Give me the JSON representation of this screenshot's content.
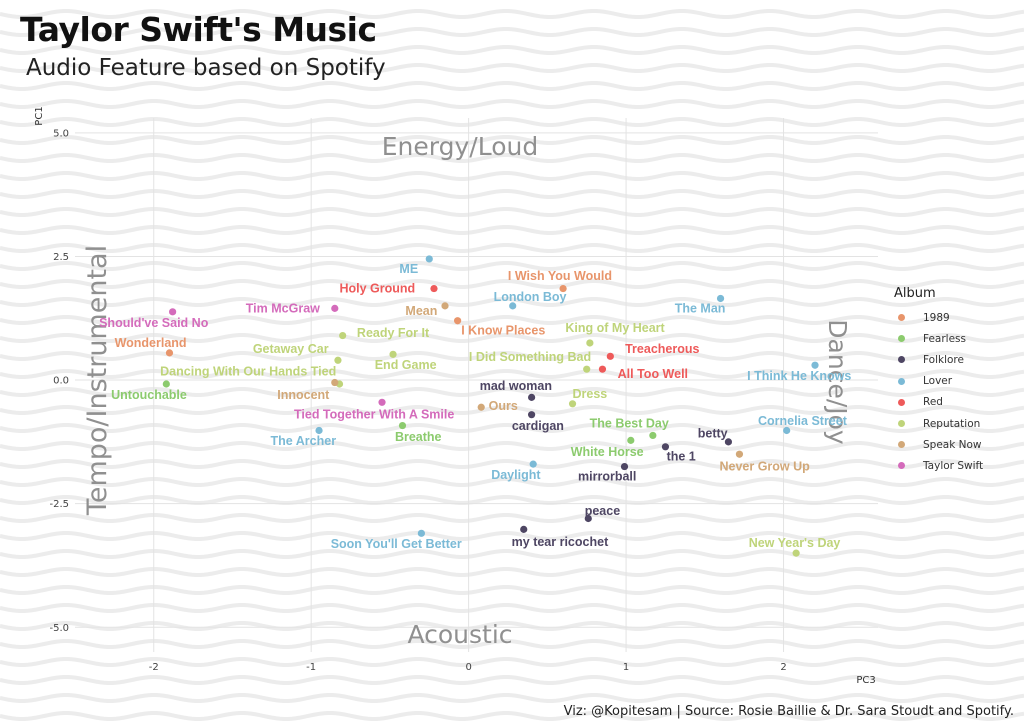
{
  "title": "Taylor Swift's Music",
  "subtitle": "Audio Feature based on Spotify",
  "caption": "Viz: @Kopitesam | Source: Rosie Baillie & Dr. Sara Stoudt and Spotify.",
  "chart_data": {
    "type": "scatter",
    "xlabel": "PC3",
    "ylabel": "PC1",
    "xlim": [
      -2.5,
      2.6
    ],
    "ylim": [
      -5.5,
      5.3
    ],
    "x_ticks": [
      -2,
      -1,
      0,
      1,
      2
    ],
    "y_ticks": [
      5.0,
      2.5,
      0.0,
      -2.5,
      -5.0
    ],
    "x_tick_labels": [
      "-2",
      "-1",
      "0",
      "1",
      "2"
    ],
    "y_tick_labels": [
      "5.0",
      "2.5",
      "0.0",
      "-2.5",
      "-5.0"
    ],
    "grid": true,
    "legend_position": "right",
    "legend_title": "Album",
    "quadrant_labels": {
      "top": "Energy/Loud",
      "bottom": "Acoustic",
      "left": "Tempo/Instrumental",
      "right": "Dance/Joy"
    },
    "albums": [
      {
        "name": "1989",
        "color": "#E8956B"
      },
      {
        "name": "Fearless",
        "color": "#8CCB6E"
      },
      {
        "name": "Folklore",
        "color": "#4E4663"
      },
      {
        "name": "Lover",
        "color": "#7BBAD6"
      },
      {
        "name": "Red",
        "color": "#EE5A5A"
      },
      {
        "name": "Reputation",
        "color": "#BFD47A"
      },
      {
        "name": "Speak Now",
        "color": "#D2A878"
      },
      {
        "name": "Taylor Swift",
        "color": "#D46BBB"
      }
    ],
    "points": [
      {
        "song": "ME",
        "album": "Lover",
        "x": -0.25,
        "y": 2.45,
        "lx": -0.38,
        "ly": 2.25
      },
      {
        "song": "Holy Ground",
        "album": "Red",
        "x": -0.22,
        "y": 1.85,
        "lx": -0.58,
        "ly": 1.85
      },
      {
        "song": "I Wish You Would",
        "album": "1989",
        "x": 0.6,
        "y": 1.85,
        "lx": 0.58,
        "ly": 2.1
      },
      {
        "song": "London Boy",
        "album": "Lover",
        "x": 0.28,
        "y": 1.5,
        "lx": 0.39,
        "ly": 1.68
      },
      {
        "song": "The Man",
        "album": "Lover",
        "x": 1.6,
        "y": 1.65,
        "lx": 1.47,
        "ly": 1.45
      },
      {
        "song": "Tim McGraw",
        "album": "Taylor Swift",
        "x": -0.85,
        "y": 1.45,
        "lx": -1.18,
        "ly": 1.45
      },
      {
        "song": "Mean",
        "album": "Speak Now",
        "x": -0.15,
        "y": 1.5,
        "lx": -0.3,
        "ly": 1.4
      },
      {
        "song": "Should've Said No",
        "album": "Taylor Swift",
        "x": -1.88,
        "y": 1.38,
        "lx": -2.0,
        "ly": 1.15
      },
      {
        "song": "Ready For It",
        "album": "Reputation",
        "x": -0.8,
        "y": 0.9,
        "lx": -0.48,
        "ly": 0.95
      },
      {
        "song": "I Know Places",
        "album": "1989",
        "x": -0.07,
        "y": 1.2,
        "lx": 0.22,
        "ly": 1.0
      },
      {
        "song": "King of My Heart",
        "album": "Reputation",
        "x": 0.77,
        "y": 0.75,
        "lx": 0.93,
        "ly": 1.05
      },
      {
        "song": "Wonderland",
        "album": "1989",
        "x": -1.9,
        "y": 0.55,
        "lx": -2.02,
        "ly": 0.75
      },
      {
        "song": "Getaway Car",
        "album": "Reputation",
        "x": -0.83,
        "y": 0.4,
        "lx": -1.13,
        "ly": 0.63
      },
      {
        "song": "Treacherous",
        "album": "Red",
        "x": 0.9,
        "y": 0.48,
        "lx": 1.23,
        "ly": 0.63
      },
      {
        "song": "I Did Something Bad",
        "album": "Reputation",
        "x": 0.75,
        "y": 0.22,
        "lx": 0.39,
        "ly": 0.47
      },
      {
        "song": "End Game",
        "album": "Reputation",
        "x": -0.48,
        "y": 0.52,
        "lx": -0.4,
        "ly": 0.3
      },
      {
        "song": "All Too Well",
        "album": "Red",
        "x": 0.85,
        "y": 0.22,
        "lx": 1.17,
        "ly": 0.12
      },
      {
        "song": "I Think He Knows",
        "album": "Lover",
        "x": 2.2,
        "y": 0.3,
        "lx": 2.1,
        "ly": 0.08
      },
      {
        "song": "Dancing With Our Hands Tied",
        "album": "Reputation",
        "x": -0.82,
        "y": -0.08,
        "lx": -1.4,
        "ly": 0.17
      },
      {
        "song": "Untouchable",
        "album": "Fearless",
        "x": -1.92,
        "y": -0.08,
        "lx": -2.03,
        "ly": -0.3
      },
      {
        "song": "Innocent",
        "album": "Speak Now",
        "x": -0.85,
        "y": -0.05,
        "lx": -1.05,
        "ly": -0.3
      },
      {
        "song": "mad woman",
        "album": "Folklore",
        "x": 0.4,
        "y": -0.35,
        "lx": 0.3,
        "ly": -0.12
      },
      {
        "song": "Dress",
        "album": "Reputation",
        "x": 0.66,
        "y": -0.48,
        "lx": 0.77,
        "ly": -0.28
      },
      {
        "song": "Ours",
        "album": "Speak Now",
        "x": 0.08,
        "y": -0.55,
        "lx": 0.22,
        "ly": -0.52
      },
      {
        "song": "Tied Together With A Smile",
        "album": "Taylor Swift",
        "x": -0.55,
        "y": -0.45,
        "lx": -0.6,
        "ly": -0.7
      },
      {
        "song": "cardigan",
        "album": "Folklore",
        "x": 0.4,
        "y": -0.7,
        "lx": 0.44,
        "ly": -0.93
      },
      {
        "song": "The Best Day",
        "album": "Fearless",
        "x": 1.17,
        "y": -1.12,
        "lx": 1.02,
        "ly": -0.88
      },
      {
        "song": "Cornelia Street",
        "album": "Lover",
        "x": 2.02,
        "y": -1.02,
        "lx": 2.12,
        "ly": -0.83
      },
      {
        "song": "The Archer",
        "album": "Lover",
        "x": -0.95,
        "y": -1.02,
        "lx": -1.05,
        "ly": -1.23
      },
      {
        "song": "Breathe",
        "album": "Fearless",
        "x": -0.42,
        "y": -0.92,
        "lx": -0.32,
        "ly": -1.15
      },
      {
        "song": "betty",
        "album": "Folklore",
        "x": 1.65,
        "y": -1.25,
        "lx": 1.55,
        "ly": -1.08
      },
      {
        "song": "White Horse",
        "album": "Fearless",
        "x": 1.03,
        "y": -1.22,
        "lx": 0.88,
        "ly": -1.45
      },
      {
        "song": "the 1",
        "album": "Folklore",
        "x": 1.25,
        "y": -1.35,
        "lx": 1.35,
        "ly": -1.55
      },
      {
        "song": "Never Grow Up",
        "album": "Speak Now",
        "x": 1.72,
        "y": -1.5,
        "lx": 1.88,
        "ly": -1.75
      },
      {
        "song": "Daylight",
        "album": "Lover",
        "x": 0.41,
        "y": -1.7,
        "lx": 0.3,
        "ly": -1.92
      },
      {
        "song": "mirrorball",
        "album": "Folklore",
        "x": 0.99,
        "y": -1.75,
        "lx": 0.88,
        "ly": -1.95
      },
      {
        "song": "peace",
        "album": "Folklore",
        "x": 0.76,
        "y": -2.8,
        "lx": 0.85,
        "ly": -2.65
      },
      {
        "song": "my tear ricochet",
        "album": "Folklore",
        "x": 0.35,
        "y": -3.02,
        "lx": 0.58,
        "ly": -3.28
      },
      {
        "song": "Soon You'll Get Better",
        "album": "Lover",
        "x": -0.3,
        "y": -3.1,
        "lx": -0.46,
        "ly": -3.32
      },
      {
        "song": "New Year's Day",
        "album": "Reputation",
        "x": 2.08,
        "y": -3.5,
        "lx": 2.07,
        "ly": -3.3
      }
    ]
  }
}
